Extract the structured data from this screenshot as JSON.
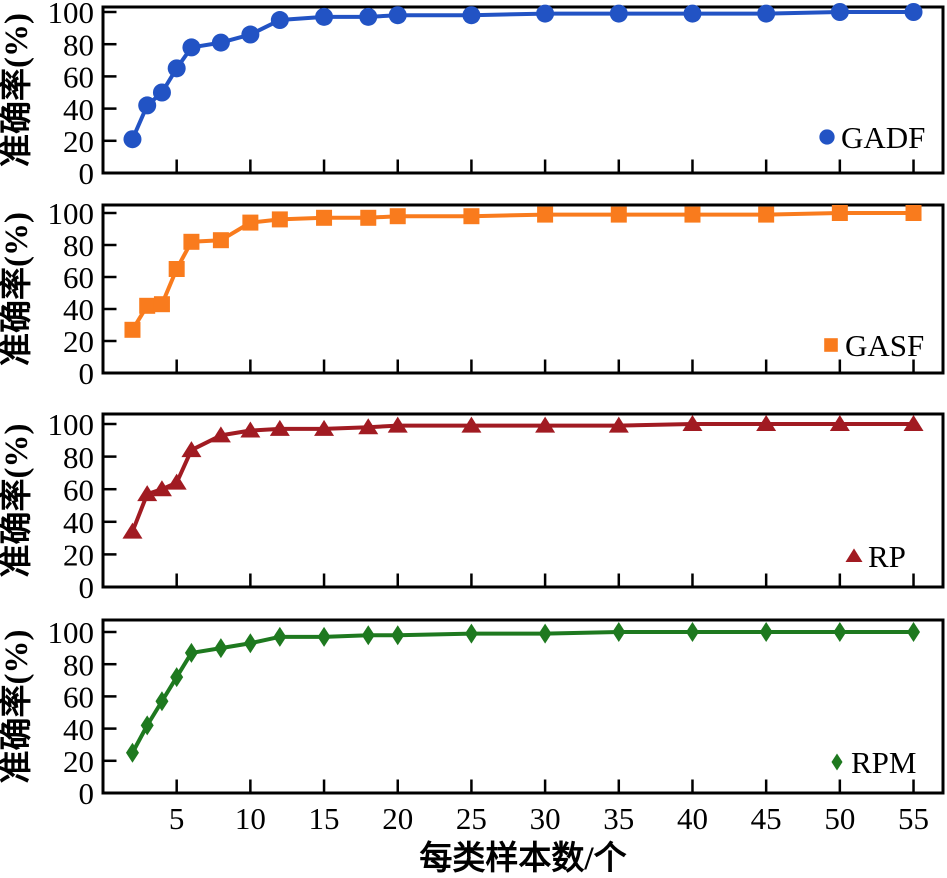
{
  "figure": {
    "background": "#ffffff",
    "axis_color": "#000000",
    "xlabel": "每类样本数/个",
    "ylabel": "准确率(%)"
  },
  "chart_data": {
    "type": "line",
    "title": "",
    "xlabel": "每类样本数/个",
    "ylabel": "准确率(%)",
    "xlim": [
      0,
      57
    ],
    "ylim": [
      0,
      105
    ],
    "grid": false,
    "legend_position": "bottom-right",
    "x_ticks": [
      5,
      10,
      15,
      20,
      25,
      30,
      35,
      40,
      45,
      50,
      55
    ],
    "y_ticks": [
      0,
      20,
      40,
      60,
      80,
      100
    ],
    "x": [
      2,
      3,
      4,
      5,
      6,
      8,
      10,
      12,
      15,
      18,
      20,
      25,
      30,
      35,
      40,
      45,
      50,
      55
    ],
    "series": [
      {
        "name": "GADF",
        "marker": "circle",
        "color": "#2253c4",
        "values": [
          21,
          42,
          50,
          65,
          78,
          81,
          86,
          95,
          97,
          97,
          98,
          98,
          99,
          99,
          99,
          99,
          100,
          100
        ]
      },
      {
        "name": "GASF",
        "marker": "square",
        "color": "#f97b1d",
        "values": [
          27,
          42,
          43,
          65,
          82,
          83,
          94,
          96,
          97,
          97,
          98,
          98,
          99,
          99,
          99,
          99,
          100,
          100
        ]
      },
      {
        "name": "RP",
        "marker": "triangle",
        "color": "#a11b22",
        "values": [
          34,
          57,
          60,
          64,
          84,
          93,
          96,
          97,
          97,
          98,
          99,
          99,
          99,
          99,
          100,
          100,
          100,
          100
        ]
      },
      {
        "name": "RPM",
        "marker": "diamond",
        "color": "#1e791f",
        "values": [
          25,
          42,
          57,
          72,
          87,
          90,
          93,
          97,
          97,
          98,
          98,
          99,
          99,
          100,
          100,
          100,
          100,
          100
        ]
      }
    ]
  }
}
